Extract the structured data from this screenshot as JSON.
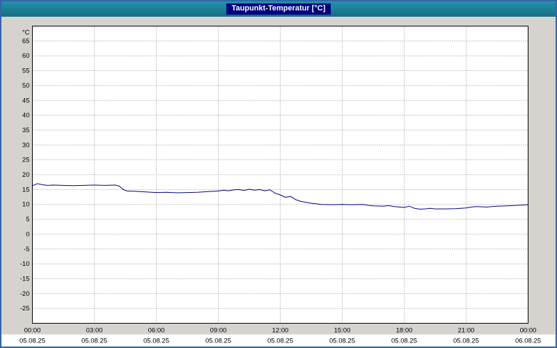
{
  "window": {
    "title": "Taupunkt-Temperatur [°C]",
    "colors": {
      "titlebar_bg": "#1b7e93",
      "title_badge_bg": "#000080",
      "title_text": "#ffffff",
      "frame_bg": "#d6d3ce",
      "border": "#3465a4",
      "plot_bg": "#ffffff",
      "grid": "#8f8f8f",
      "line": "#000080",
      "date_strip_bg": "#ffffff"
    }
  },
  "chart_data": {
    "type": "line",
    "title": "Taupunkt-Temperatur [°C]",
    "ylabel": "°C",
    "xlabel": "",
    "ylim": [
      -30,
      70
    ],
    "y_ticks": [
      65,
      60,
      55,
      50,
      45,
      40,
      35,
      30,
      25,
      20,
      15,
      10,
      5,
      0,
      -5,
      -10,
      -15,
      -20,
      -25
    ],
    "x_hours_range": [
      0,
      24
    ],
    "x_tick_hours": [
      0,
      3,
      6,
      9,
      12,
      15,
      18,
      21,
      24
    ],
    "x_tick_labels": [
      "00:00",
      "03:00",
      "06:00",
      "09:00",
      "12:00",
      "15:00",
      "18:00",
      "21:00",
      "00:00"
    ],
    "x_date_labels": [
      "05.08.25",
      "05.08.25",
      "05.08.25",
      "05.08.25",
      "05.08.25",
      "05.08.25",
      "05.08.25",
      "05.08.25",
      "06.08.25"
    ],
    "grid": "dotted",
    "legend": "none",
    "series": [
      {
        "name": "Taupunkt-Temperatur",
        "x": [
          0,
          0.25,
          0.5,
          0.75,
          1,
          1.5,
          2,
          2.5,
          3,
          3.5,
          4,
          4.2,
          4.4,
          4.6,
          5,
          5.5,
          6,
          6.5,
          7,
          7.5,
          8,
          8.5,
          9,
          9.25,
          9.5,
          9.75,
          10,
          10.25,
          10.5,
          10.75,
          11,
          11.25,
          11.5,
          11.75,
          12,
          12.25,
          12.5,
          12.75,
          13,
          13.25,
          13.5,
          14,
          14.5,
          15,
          15.5,
          16,
          16.25,
          16.5,
          17,
          17.25,
          17.5,
          18,
          18.25,
          18.5,
          18.75,
          19,
          19.25,
          19.5,
          20,
          20.5,
          21,
          21.25,
          21.5,
          22,
          22.25,
          22.5,
          23,
          23.5,
          24
        ],
        "values": [
          16.3,
          17.0,
          16.6,
          16.4,
          16.5,
          16.4,
          16.3,
          16.4,
          16.5,
          16.4,
          16.5,
          16.2,
          15.0,
          14.5,
          14.4,
          14.2,
          14.0,
          14.1,
          13.9,
          14.0,
          14.1,
          14.3,
          14.5,
          14.8,
          14.6,
          14.9,
          15.0,
          14.7,
          15.1,
          14.8,
          15.0,
          14.6,
          14.9,
          13.8,
          13.2,
          12.4,
          12.7,
          11.6,
          11.0,
          10.7,
          10.4,
          10.0,
          9.9,
          10.0,
          9.9,
          10.0,
          9.7,
          9.5,
          9.4,
          9.6,
          9.3,
          9.0,
          9.4,
          8.7,
          8.4,
          8.5,
          8.7,
          8.5,
          8.5,
          8.6,
          8.8,
          9.1,
          9.3,
          9.1,
          9.3,
          9.4,
          9.5,
          9.7,
          9.9
        ]
      }
    ]
  }
}
